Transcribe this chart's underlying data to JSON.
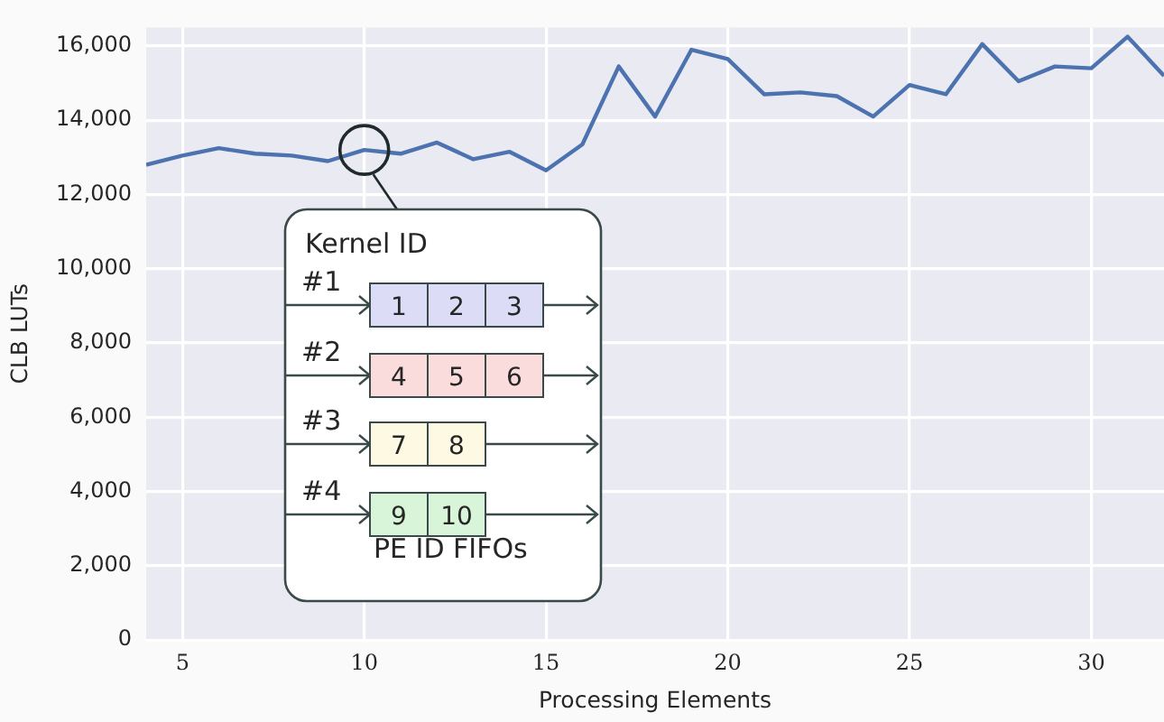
{
  "chart_data": {
    "type": "line",
    "xlabel": "Processing Elements",
    "ylabel": "CLB LUTs",
    "x": [
      4,
      5,
      6,
      7,
      8,
      9,
      10,
      11,
      12,
      13,
      14,
      15,
      16,
      17,
      18,
      19,
      20,
      21,
      22,
      23,
      24,
      25,
      26,
      27,
      28,
      29,
      30,
      31,
      32
    ],
    "series": [
      {
        "color": "#4c72b0",
        "values": [
          12800,
          13050,
          13250,
          13100,
          13050,
          12900,
          13200,
          13100,
          13400,
          12950,
          13150,
          12650,
          13350,
          15450,
          14100,
          15900,
          15650,
          14700,
          14750,
          14650,
          14100,
          14950,
          14700,
          16050,
          15050,
          15450,
          15400,
          16250,
          15200
        ]
      }
    ],
    "xlim": [
      4,
      32
    ],
    "xticks": [
      5,
      10,
      15,
      20,
      25,
      30
    ],
    "ylim": [
      0,
      16500
    ],
    "yticks": [
      0,
      {
        "value": 2000,
        "label": "2,000"
      },
      {
        "value": 4000,
        "label": "4,000"
      },
      {
        "value": 6000,
        "label": "6,000"
      },
      {
        "value": 8000,
        "label": "8,000"
      },
      {
        "value": 10000,
        "label": "10,000"
      },
      {
        "value": 12000,
        "label": "12,000"
      },
      {
        "value": 14000,
        "label": "14,000"
      },
      {
        "value": 16000,
        "label": "16,000"
      }
    ],
    "grid": true,
    "legend": false,
    "marker": "none",
    "line_style": "solid",
    "annotations": [
      {
        "text": "Kernel ID",
        "x": 10,
        "y": 13200
      },
      "#1",
      "#2",
      "#3",
      "#4",
      "PE ID FIFOs",
      "1",
      "2",
      "3",
      "4",
      "5",
      "6",
      "7",
      "8",
      "9",
      "10"
    ]
  }
}
